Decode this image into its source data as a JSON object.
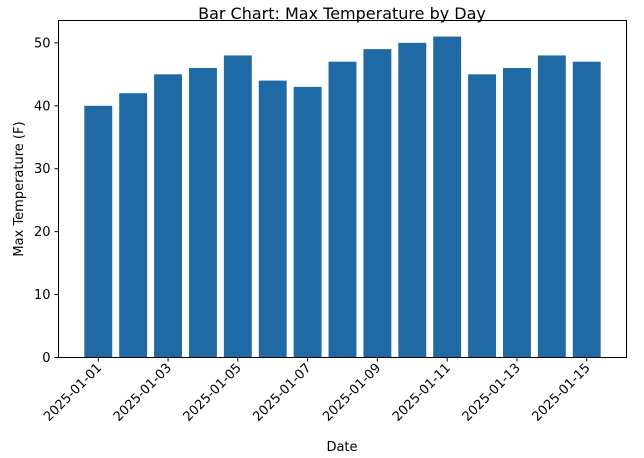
{
  "chart_data": {
    "type": "bar",
    "title": "Bar Chart: Max Temperature by Day",
    "xlabel": "Date",
    "ylabel": "Max Temperature (F)",
    "categories": [
      "2025-01-01",
      "2025-01-02",
      "2025-01-03",
      "2025-01-04",
      "2025-01-05",
      "2025-01-06",
      "2025-01-07",
      "2025-01-08",
      "2025-01-09",
      "2025-01-10",
      "2025-01-11",
      "2025-01-12",
      "2025-01-13",
      "2025-01-14",
      "2025-01-15"
    ],
    "values": [
      40,
      42,
      45,
      46,
      48,
      44,
      43,
      47,
      49,
      50,
      51,
      45,
      46,
      48,
      47
    ],
    "x_tick_labels": [
      "2025-01-01",
      "2025-01-03",
      "2025-01-05",
      "2025-01-07",
      "2025-01-09",
      "2025-01-11",
      "2025-01-13",
      "2025-01-15"
    ],
    "y_ticks": [
      0,
      10,
      20,
      30,
      40,
      50
    ],
    "ylim": [
      0,
      53.55
    ],
    "bar_color": "#1f6aa5",
    "grid": false,
    "legend": "none"
  }
}
